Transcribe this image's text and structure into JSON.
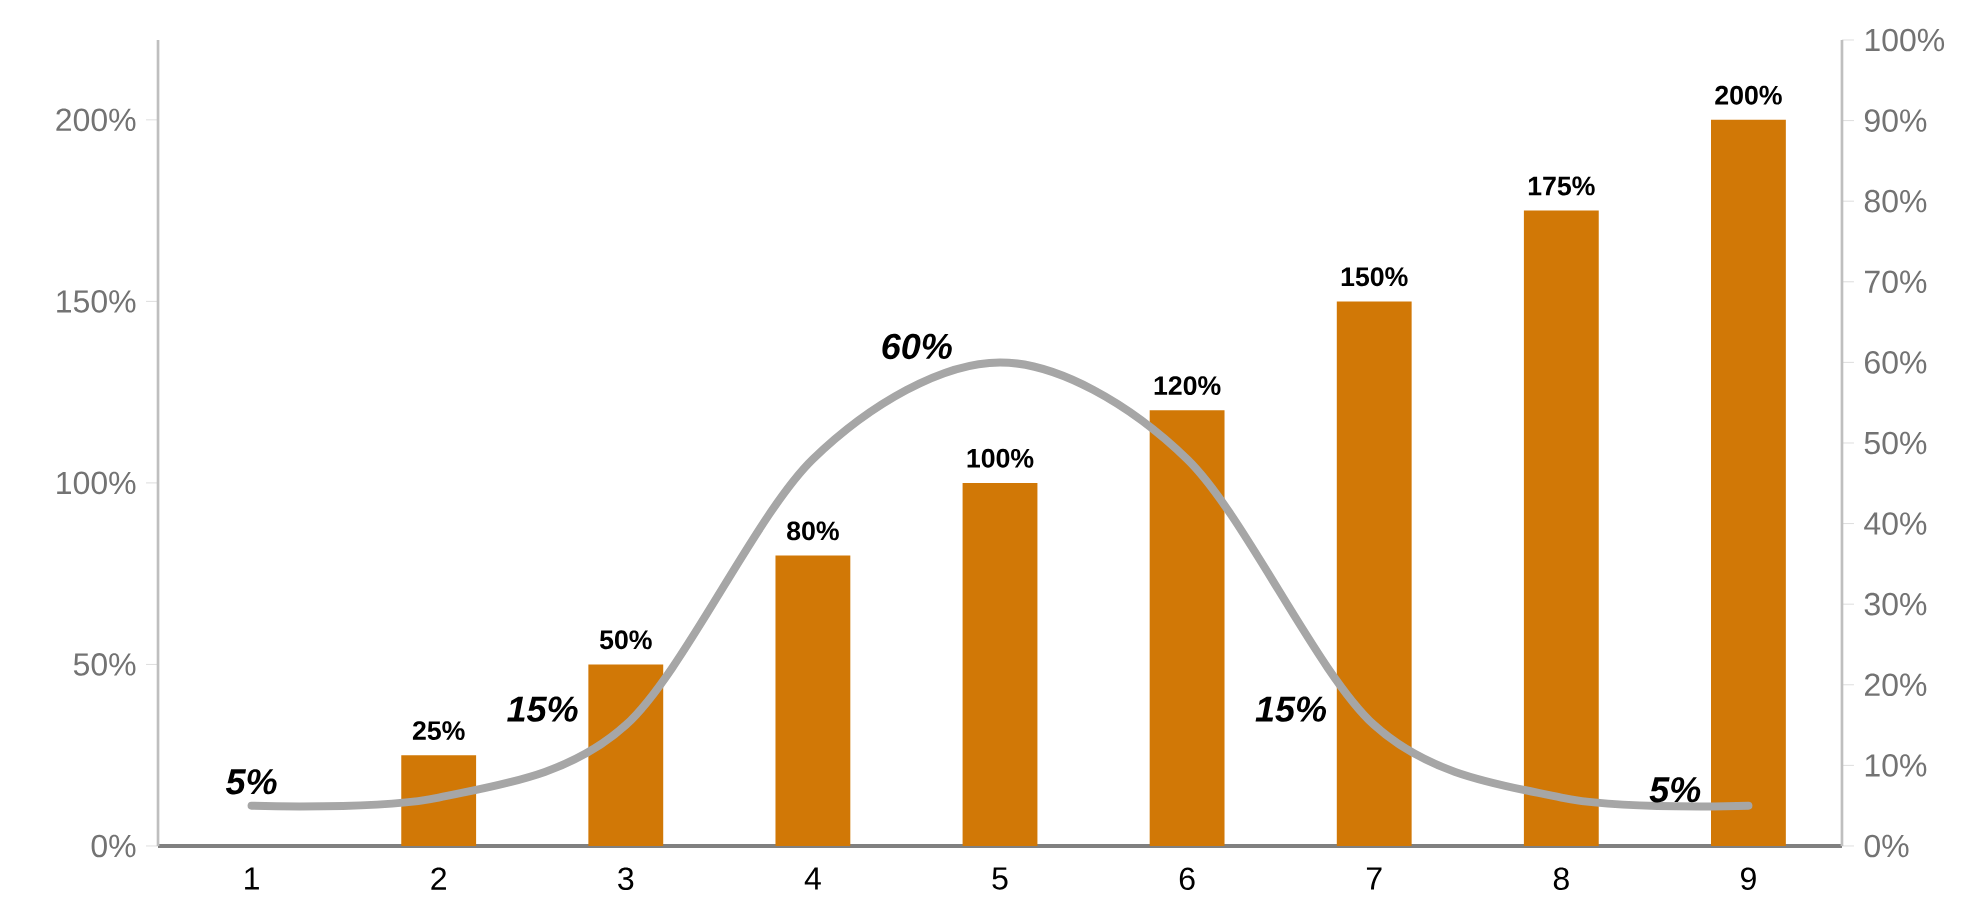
{
  "chart_data": {
    "type": "bar",
    "categories": [
      "1",
      "2",
      "3",
      "4",
      "5",
      "6",
      "7",
      "8",
      "9"
    ],
    "series": [
      {
        "type": "bar",
        "color": "#d17806",
        "values": [
          null,
          25,
          50,
          80,
          100,
          120,
          150,
          175,
          200
        ],
        "value_labels": [
          null,
          "25%",
          "50%",
          "80%",
          "100%",
          "120%",
          "150%",
          "175%",
          "200%"
        ]
      },
      {
        "type": "line",
        "axis": "y2",
        "color": "#a6a6a6",
        "values": [
          5,
          6,
          15,
          48,
          60,
          48,
          15,
          6,
          5
        ],
        "value_labels": [
          "5%",
          null,
          "15%",
          null,
          "60%",
          null,
          "15%",
          null,
          "5%"
        ]
      }
    ],
    "ylim": [
      0,
      222
    ],
    "yticks": [
      {
        "value": 0,
        "label": "0%"
      },
      {
        "value": 50,
        "label": "50%"
      },
      {
        "value": 100,
        "label": "100%"
      },
      {
        "value": 150,
        "label": "150%"
      },
      {
        "value": 200,
        "label": "200%"
      }
    ],
    "y2lim": [
      0,
      100
    ],
    "y2ticks": [
      {
        "value": 0,
        "label": "0%"
      },
      {
        "value": 10,
        "label": "10%"
      },
      {
        "value": 20,
        "label": "20%"
      },
      {
        "value": 30,
        "label": "30%"
      },
      {
        "value": 40,
        "label": "40%"
      },
      {
        "value": 50,
        "label": "50%"
      },
      {
        "value": 60,
        "label": "60%"
      },
      {
        "value": 70,
        "label": "70%"
      },
      {
        "value": 80,
        "label": "80%"
      },
      {
        "value": 90,
        "label": "90%"
      },
      {
        "value": 100,
        "label": "100%"
      }
    ],
    "marker": "none",
    "line_style": "solid"
  }
}
